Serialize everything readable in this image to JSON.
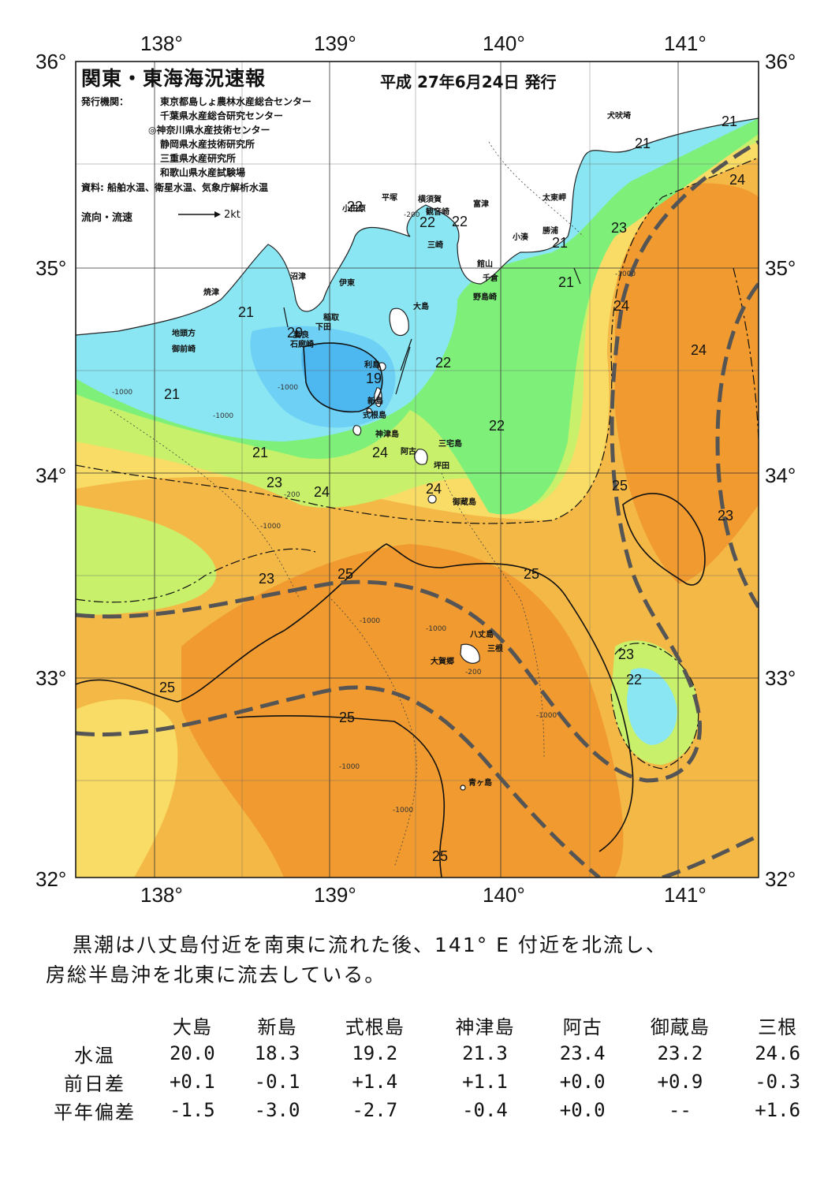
{
  "map": {
    "title": "関東・東海海況速報",
    "issue_date": "平成 27年6月24日 発行",
    "issuer_label": "発行機関：",
    "issuers": [
      "東京都島しょ農林水産総合センター",
      "千葉県水産総合研究センター",
      "◎神奈川県水産技術センター",
      "静岡県水産技術研究所",
      "三重県水産研究所",
      "和歌山県水産試験場"
    ],
    "sources": "資料: 船舶水温、衛星水温、気象庁解析水温",
    "flow_legend": "流向・流速",
    "flow_scale": "2kt",
    "lon_labels": [
      "138°",
      "139°",
      "140°",
      "141°"
    ],
    "lat_labels": [
      "36°",
      "35°",
      "34°",
      "33°",
      "32°"
    ],
    "place_names": {
      "inubozaki": "犬吠埼",
      "taitomisaki": "太東岬",
      "katsuura": "勝浦",
      "kominato": "小湊",
      "tateyama": "館山",
      "chikura": "千倉",
      "nojimazaki": "野島崎",
      "futtsu": "富津",
      "yokosuka": "横須賀",
      "hiratsuka": "平塚",
      "odawara": "小田原",
      "kannonzaki": "観音崎",
      "misaki": "三崎",
      "numazu": "沼津",
      "ito": "伊東",
      "yaizu": "焼津",
      "inatori": "稲取",
      "shimoda": "下田",
      "mera": "妻良",
      "irozaki": "石廊崎",
      "jitokata": "地頭方",
      "omaezaki": "御前崎",
      "oshima": "大島",
      "toshima": "利島",
      "niijima": "新島",
      "shikinejima": "式根島",
      "kozushima": "神津島",
      "miyakejima": "三宅島",
      "ako": "阿古",
      "tsubota": "坪田",
      "mikurajima": "御蔵島",
      "hachijojima": "八丈島",
      "mitsune": "三根",
      "okago": "大賀郷",
      "aogashima": "青ヶ島"
    },
    "temperature_labels": [
      "19",
      "20",
      "21",
      "22",
      "23",
      "24",
      "25"
    ],
    "depth_labels": [
      "-200",
      "-1000"
    ]
  },
  "summary": {
    "line1": "黒潮は八丈島付近を南東に流れた後、141° E 付近を北流し、",
    "line2": "房総半島沖を北東に流去している。"
  },
  "station_table": {
    "columns": [
      "大島",
      "新島",
      "式根島",
      "神津島",
      "阿古",
      "御蔵島",
      "三根"
    ],
    "rows": [
      {
        "label": "水温",
        "values": [
          "20.0",
          "18.3",
          "19.2",
          "21.3",
          "23.4",
          "23.2",
          "24.6"
        ]
      },
      {
        "label": "前日差",
        "values": [
          "+0.1",
          "-0.1",
          "+1.4",
          "+1.1",
          "+0.0",
          "+0.9",
          "-0.3"
        ]
      },
      {
        "label": "平年偏差",
        "values": [
          "-1.5",
          "-3.0",
          "-2.7",
          "-0.4",
          "+0.0",
          "--",
          "+1.6"
        ]
      }
    ]
  },
  "colors": {
    "t19": "#4db8f0",
    "t20": "#6fd0f6",
    "t21": "#8ae6f2",
    "t22": "#7ef07a",
    "t23": "#c8f06a",
    "t24": "#f8dc66",
    "t25": "#f4b846",
    "t26": "#f09a30",
    "land": "#ffffff",
    "kuroshio_axis": "#555555"
  }
}
